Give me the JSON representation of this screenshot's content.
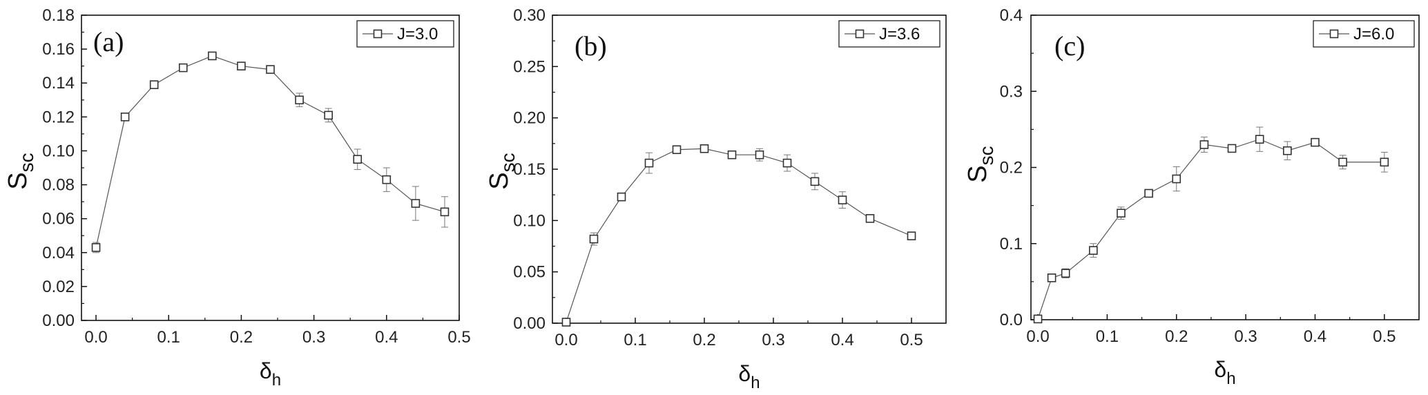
{
  "chart_data": [
    {
      "type": "line",
      "panel_label": "(a)",
      "xlabel": "δ",
      "xlabel_sub": "h",
      "ylabel": "S",
      "ylabel_sub": "sc",
      "xlim": [
        -0.02,
        0.5
      ],
      "ylim": [
        0,
        0.18
      ],
      "xticks": [
        0.0,
        0.1,
        0.2,
        0.3,
        0.4,
        0.5
      ],
      "xtick_labels": [
        "0.0",
        "0.1",
        "0.2",
        "0.3",
        "0.4",
        "0.5"
      ],
      "yticks": [
        0,
        0.02,
        0.04,
        0.06,
        0.08,
        0.1,
        0.12,
        0.14,
        0.16,
        0.18
      ],
      "ytick_labels": [
        "0.00",
        "0.02",
        "0.04",
        "0.06",
        "0.08",
        "0.10",
        "0.12",
        "0.14",
        "0.16",
        "0.18"
      ],
      "legend_position": "top-right",
      "series": [
        {
          "name": "J=3.0",
          "marker": "open-square",
          "x": [
            0.0,
            0.04,
            0.08,
            0.12,
            0.16,
            0.2,
            0.24,
            0.28,
            0.32,
            0.36,
            0.4,
            0.44,
            0.48
          ],
          "y": [
            0.043,
            0.12,
            0.139,
            0.149,
            0.156,
            0.15,
            0.148,
            0.13,
            0.121,
            0.095,
            0.083,
            0.069,
            0.064
          ],
          "err": [
            0.003,
            0.001,
            0.001,
            0.001,
            0.001,
            0.001,
            0.001,
            0.004,
            0.004,
            0.006,
            0.007,
            0.01,
            0.009
          ]
        }
      ]
    },
    {
      "type": "line",
      "panel_label": "(b)",
      "xlabel": "δ",
      "xlabel_sub": "h",
      "ylabel": "S",
      "ylabel_sub": "sc",
      "xlim": [
        -0.02,
        0.55
      ],
      "ylim": [
        0,
        0.3
      ],
      "xticks": [
        0.0,
        0.1,
        0.2,
        0.3,
        0.4,
        0.5
      ],
      "xtick_labels": [
        "0.0",
        "0.1",
        "0.2",
        "0.3",
        "0.4",
        "0.5"
      ],
      "yticks": [
        0,
        0.05,
        0.1,
        0.15,
        0.2,
        0.25,
        0.3
      ],
      "ytick_labels": [
        "0.00",
        "0.05",
        "0.10",
        "0.15",
        "0.20",
        "0.25",
        "0.30"
      ],
      "legend_position": "top-right",
      "series": [
        {
          "name": "J=3.6",
          "marker": "open-square",
          "x": [
            0.0,
            0.04,
            0.08,
            0.12,
            0.16,
            0.2,
            0.24,
            0.28,
            0.32,
            0.36,
            0.4,
            0.44,
            0.5
          ],
          "y": [
            0.001,
            0.082,
            0.123,
            0.156,
            0.169,
            0.17,
            0.164,
            0.164,
            0.156,
            0.138,
            0.12,
            0.102,
            0.085
          ],
          "err": [
            0.003,
            0.006,
            0.002,
            0.01,
            0.002,
            0.003,
            0.002,
            0.006,
            0.008,
            0.008,
            0.008,
            0.002,
            0.002
          ]
        }
      ]
    },
    {
      "type": "line",
      "panel_label": "(c)",
      "xlabel": "δ",
      "xlabel_sub": "h",
      "ylabel": "S",
      "ylabel_sub": "sc",
      "xlim": [
        -0.01,
        0.55
      ],
      "ylim": [
        0,
        0.4
      ],
      "xticks": [
        0.0,
        0.1,
        0.2,
        0.3,
        0.4,
        0.5
      ],
      "xtick_labels": [
        "0.0",
        "0.1",
        "0.2",
        "0.3",
        "0.4",
        "0.5"
      ],
      "yticks": [
        0,
        0.1,
        0.2,
        0.3,
        0.4
      ],
      "ytick_labels": [
        "0.0",
        "0.1",
        "0.2",
        "0.3",
        "0.4"
      ],
      "legend_position": "top-right",
      "series": [
        {
          "name": "J=6.0",
          "marker": "open-square",
          "x": [
            0.0,
            0.02,
            0.04,
            0.08,
            0.12,
            0.16,
            0.2,
            0.24,
            0.28,
            0.32,
            0.36,
            0.4,
            0.44,
            0.5
          ],
          "y": [
            0.001,
            0.055,
            0.061,
            0.091,
            0.14,
            0.166,
            0.185,
            0.23,
            0.225,
            0.237,
            0.222,
            0.233,
            0.207,
            0.207
          ],
          "err": [
            0.003,
            0.003,
            0.006,
            0.009,
            0.008,
            0.005,
            0.016,
            0.01,
            0.003,
            0.016,
            0.012,
            0.003,
            0.009,
            0.013
          ]
        }
      ]
    }
  ]
}
